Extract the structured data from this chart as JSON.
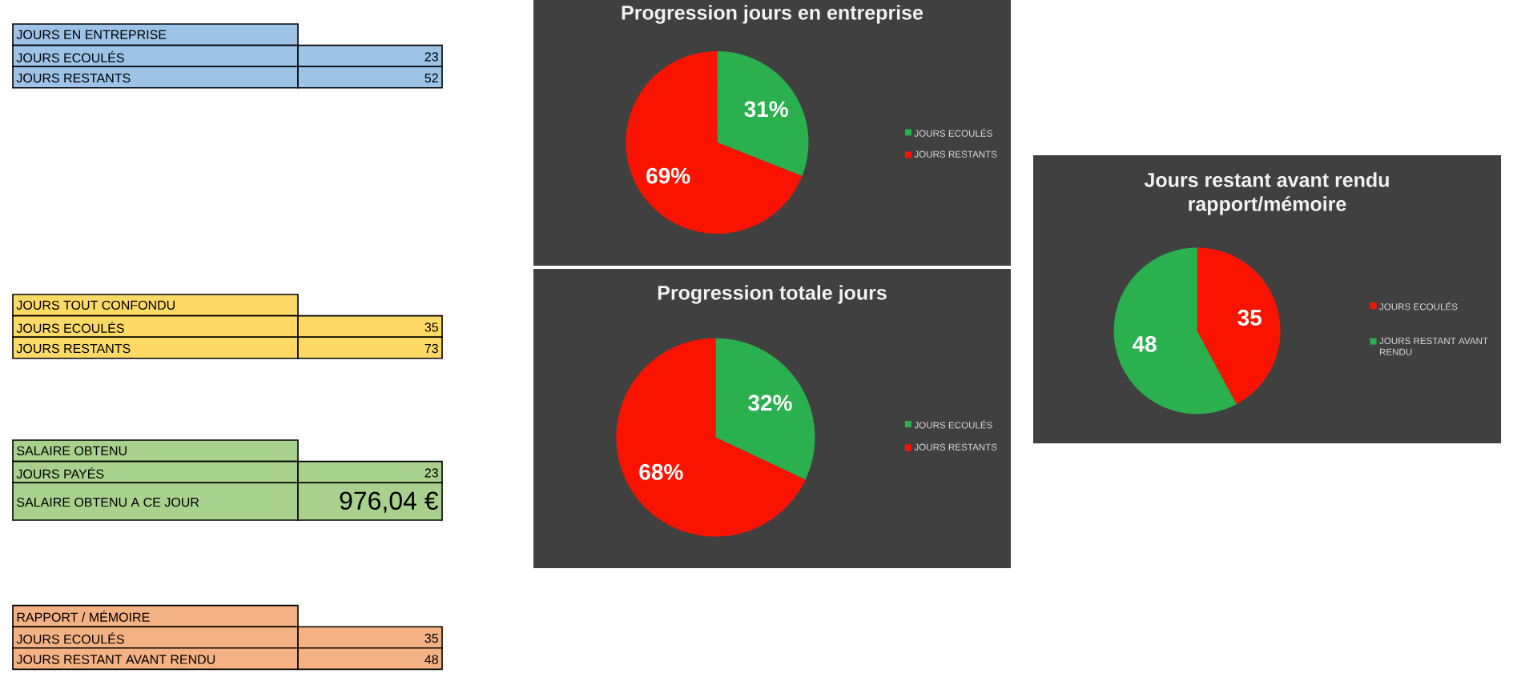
{
  "chart_data": [
    {
      "type": "other",
      "title": "JOURS EN ENTREPRISE",
      "categories": [
        "JOURS ECOULÉS",
        "JOURS RESTANTS"
      ],
      "values": [
        23,
        52
      ],
      "data_labels": true,
      "color": "#9dc3e6"
    },
    {
      "type": "pie",
      "title": "Progression jours en entreprise",
      "categories": [
        "JOURS ECOULÉS",
        "JOURS RESTANTS"
      ],
      "values": [
        31,
        69
      ],
      "value_labels": [
        "31%",
        "69%"
      ],
      "colors": [
        "#2ab04f",
        "#fa1400"
      ],
      "legend": "right"
    },
    {
      "type": "pie",
      "title": "Jours restant avant rendu rapport/mémoire",
      "categories": [
        "JOURS ECOULÉS",
        "JOURS RESTANT AVANT RENDU"
      ],
      "values": [
        35,
        48
      ],
      "data_labels": true,
      "colors": [
        "#fa1400",
        "#2ab04f"
      ],
      "legend": "right"
    },
    {
      "type": "other",
      "title": "JOURS TOUT CONFONDU",
      "categories": [
        "JOURS ECOULÉS",
        "JOURS RESTANTS"
      ],
      "values": [
        35,
        73
      ],
      "data_labels": true,
      "color": "#ffd966"
    },
    {
      "type": "pie",
      "title": "Progression totale jours",
      "categories": [
        "JOURS ECOULÉS",
        "JOURS RESTANTS"
      ],
      "values": [
        32,
        68
      ],
      "value_labels": [
        "32%",
        "68%"
      ],
      "colors": [
        "#2ab04f",
        "#fa1400"
      ],
      "legend": "right"
    },
    {
      "type": "other",
      "title": "SALAIRE OBTENU",
      "categories": [
        "JOURS PAYÉS",
        "SALAIRE OBTENU A CE JOUR"
      ],
      "values": [
        23,
        976.04
      ],
      "value_labels": [
        "23",
        "976,04 €"
      ],
      "color": "#a9d18e"
    },
    {
      "type": "other",
      "title": "RAPPORT / MÉMOIRE",
      "categories": [
        "JOURS ECOULÉS",
        "JOURS RESTANT AVANT RENDU"
      ],
      "values": [
        35,
        48
      ],
      "data_labels": true,
      "color": "#f4b183"
    }
  ]
}
